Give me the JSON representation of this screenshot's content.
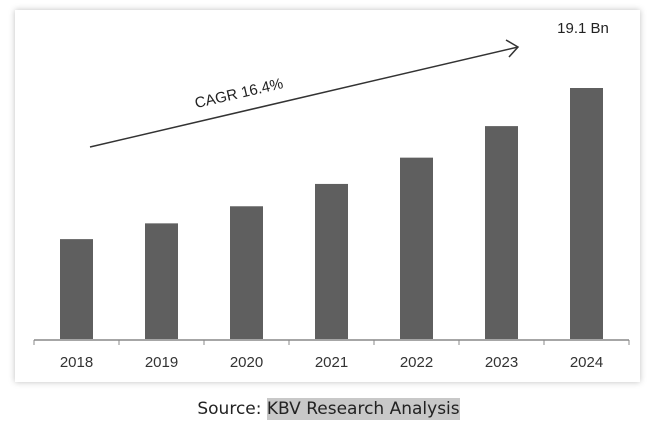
{
  "chart_data": {
    "type": "bar",
    "categories": [
      "2018",
      "2019",
      "2020",
      "2021",
      "2022",
      "2023",
      "2024"
    ],
    "values": [
      7.6,
      8.8,
      10.1,
      11.8,
      13.8,
      16.2,
      19.1
    ],
    "unit": "Bn",
    "data_labels": {
      "2024": "19.1 Bn"
    },
    "annotation": "CAGR 16.4%",
    "title": "",
    "xlabel": "",
    "ylabel": "",
    "ylim": [
      0,
      19.1
    ],
    "grid": false,
    "bar_color": "#5f5f5f"
  },
  "source": {
    "prefix": "Source:",
    "name": "KBV Research Analysis"
  }
}
